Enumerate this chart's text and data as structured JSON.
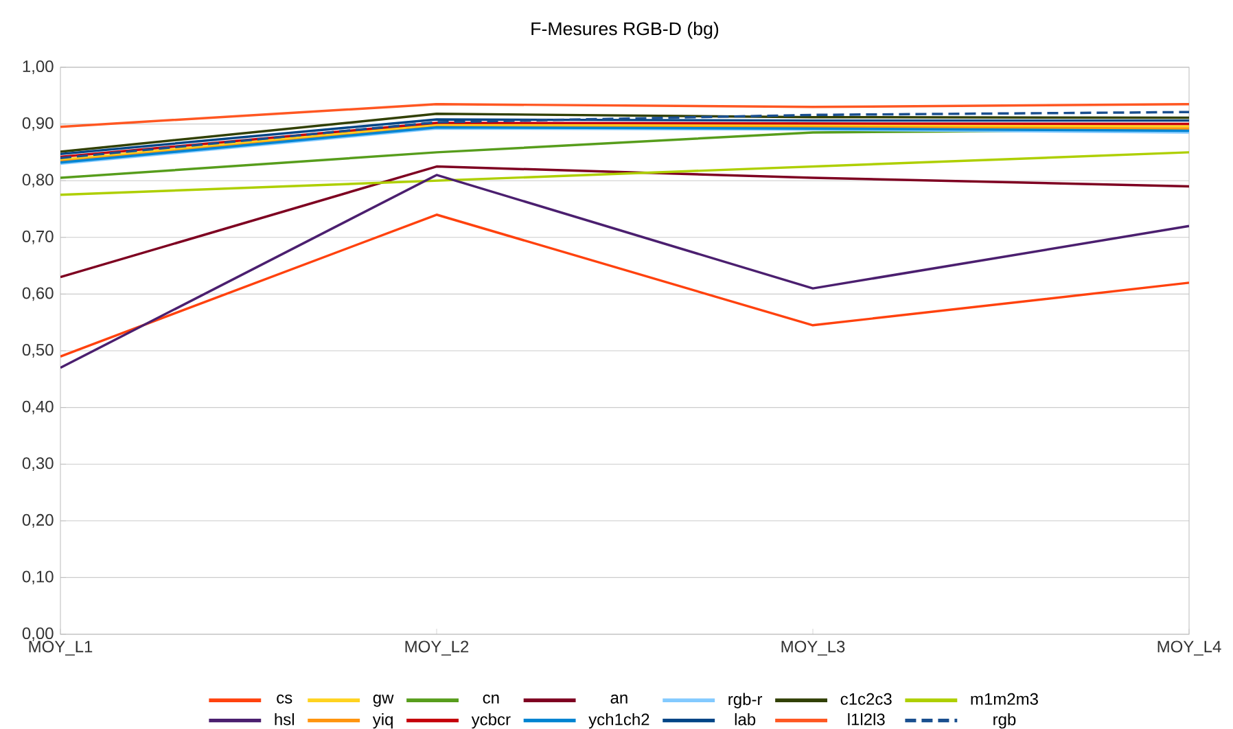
{
  "chart_data": {
    "type": "line",
    "title": "F-Mesures RGB-D (bg)",
    "categories": [
      "MOY_L1",
      "MOY_L2",
      "MOY_L3",
      "MOY_L4"
    ],
    "ylim": [
      0,
      1
    ],
    "yticks": [
      {
        "value": 0,
        "label": "0,00"
      },
      {
        "value": 0.1,
        "label": "0,10"
      },
      {
        "value": 0.2,
        "label": "0,20"
      },
      {
        "value": 0.3,
        "label": "0,30"
      },
      {
        "value": 0.4,
        "label": "0,40"
      },
      {
        "value": 0.5,
        "label": "0,50"
      },
      {
        "value": 0.6,
        "label": "0,60"
      },
      {
        "value": 0.7,
        "label": "0,70"
      },
      {
        "value": 0.8,
        "label": "0,80"
      },
      {
        "value": 0.9,
        "label": "0,90"
      },
      {
        "value": 1,
        "label": "1,00"
      }
    ],
    "grid": "y",
    "legend": "bottom",
    "marker": "none",
    "line_style": "solid",
    "series": [
      {
        "name": "cs",
        "color": "#ff420e",
        "values": [
          0.49,
          0.74,
          0.545,
          0.62
        ]
      },
      {
        "name": "gw",
        "color": "#ffd320",
        "values": [
          0.837,
          0.899,
          0.897,
          0.896
        ]
      },
      {
        "name": "cn",
        "color": "#579d1c",
        "values": [
          0.805,
          0.85,
          0.885,
          0.89
        ]
      },
      {
        "name": "an",
        "color": "#7e0021",
        "values": [
          0.63,
          0.825,
          0.805,
          0.79
        ]
      },
      {
        "name": "rgb-r",
        "color": "#83caff",
        "values": [
          0.83,
          0.892,
          0.89,
          0.885
        ]
      },
      {
        "name": "c1c2c3",
        "color": "#314004",
        "values": [
          0.851,
          0.918,
          0.912,
          0.911
        ]
      },
      {
        "name": "m1m2m3",
        "color": "#aecf00",
        "values": [
          0.775,
          0.8,
          0.825,
          0.85
        ]
      },
      {
        "name": "hsl",
        "color": "#4b1f6f",
        "values": [
          0.47,
          0.81,
          0.61,
          0.72
        ]
      },
      {
        "name": "yiq",
        "color": "#ff950e",
        "values": [
          0.834,
          0.895,
          0.894,
          0.892
        ]
      },
      {
        "name": "ycbcr",
        "color": "#c5000b",
        "values": [
          0.842,
          0.902,
          0.901,
          0.9
        ]
      },
      {
        "name": "ych1ch2",
        "color": "#0084d1",
        "values": [
          0.832,
          0.894,
          0.892,
          0.888
        ]
      },
      {
        "name": "lab",
        "color": "#004586",
        "values": [
          0.847,
          0.908,
          0.906,
          0.906
        ]
      },
      {
        "name": "l1l2l3",
        "color": "#ff5722",
        "values": [
          0.895,
          0.935,
          0.93,
          0.935
        ]
      },
      {
        "name": "rgb",
        "color": "#1a4f8f",
        "line_style": "dashed",
        "values": [
          0.84,
          0.903,
          0.916,
          0.921
        ]
      }
    ]
  }
}
